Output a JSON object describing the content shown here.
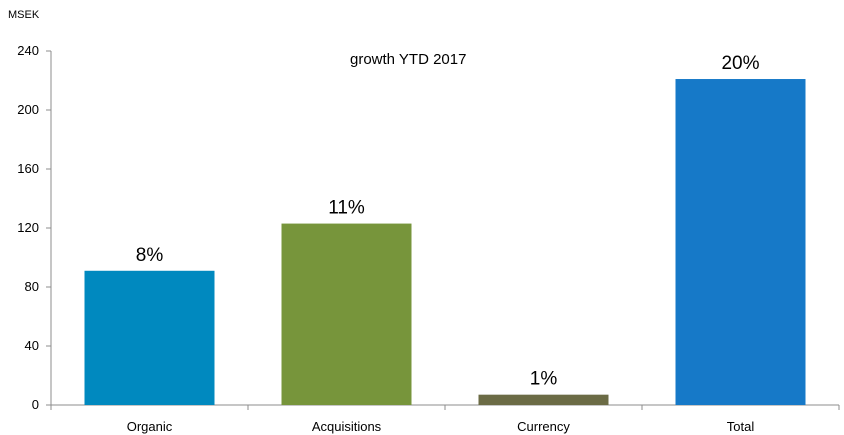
{
  "chart_data": {
    "type": "bar",
    "title": "growth YTD 2017",
    "unit_label": "MSEK",
    "categories": [
      "Organic",
      "Acquisitions",
      "Currency",
      "Total"
    ],
    "values": [
      91,
      123,
      7,
      221
    ],
    "data_labels": [
      "8%",
      "11%",
      "1%",
      "20%"
    ],
    "colors": [
      "#0089bf",
      "#77953b",
      "#6b6b45",
      "#1679c8"
    ],
    "y_ticks": [
      "0",
      "40",
      "80",
      "120",
      "160",
      "200",
      "240"
    ],
    "ylim": [
      0,
      240
    ],
    "grid": false,
    "legend": "none"
  }
}
